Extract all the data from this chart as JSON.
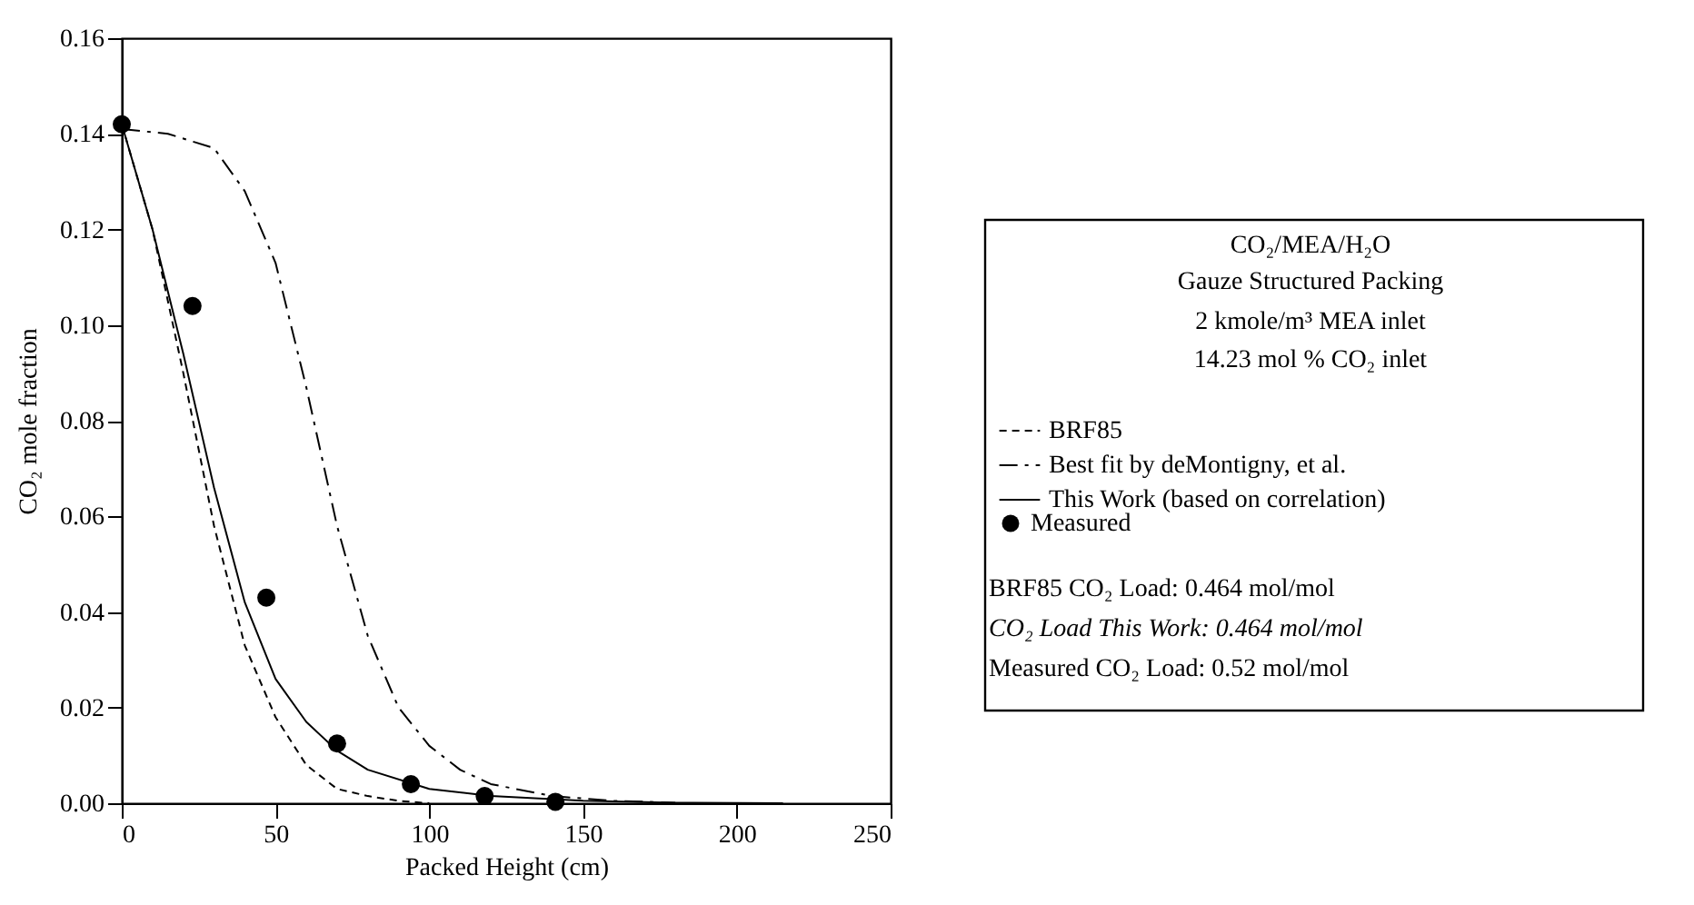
{
  "chart_data": {
    "type": "line",
    "xlabel": "Packed Height (cm)",
    "ylabel": "CO₂ mole fraction",
    "xlim": [
      0,
      250
    ],
    "xticks": [
      0,
      50,
      100,
      150,
      200,
      250
    ],
    "ylim": [
      0,
      0.16
    ],
    "yticks": [
      {
        "value": 0,
        "label": "0.00"
      },
      0.02,
      0.04,
      0.06,
      0.08,
      {
        "value": 0.1,
        "label": "0.10"
      },
      0.12,
      0.14,
      0.16
    ],
    "grid": false,
    "legend": "right",
    "series": [
      {
        "name": "BRF85",
        "line_style": "dashed",
        "color": "#000000",
        "x": [
          0,
          10,
          20,
          30,
          40,
          50,
          60,
          70,
          80,
          90,
          100
        ],
        "values": [
          0.142,
          0.12,
          0.09,
          0.058,
          0.033,
          0.018,
          0.008,
          0.003,
          0.0015,
          0.0005,
          0
        ]
      },
      {
        "name": "Best fit by deMontigny, et al.",
        "line_style": "dashdot",
        "color": "#000000",
        "x": [
          0,
          15,
          30,
          40,
          50,
          60,
          70,
          80,
          90,
          100,
          110,
          120,
          140,
          160,
          180
        ],
        "values": [
          0.141,
          0.14,
          0.137,
          0.128,
          0.113,
          0.087,
          0.058,
          0.035,
          0.02,
          0.012,
          0.007,
          0.004,
          0.0015,
          0.0005,
          0.0001
        ]
      },
      {
        "name": "This Work (based on correlation)",
        "line_style": "solid",
        "color": "#000000",
        "x": [
          0,
          10,
          20,
          30,
          40,
          50,
          60,
          70,
          80,
          100,
          120,
          150,
          180,
          215
        ],
        "values": [
          0.142,
          0.12,
          0.094,
          0.066,
          0.042,
          0.026,
          0.017,
          0.011,
          0.007,
          0.003,
          0.0015,
          0.0005,
          0.0001,
          0
        ]
      },
      {
        "name": "Measured",
        "type": "scatter",
        "marker": "circle",
        "color": "#000000",
        "x": [
          0,
          23,
          47,
          70,
          94,
          118,
          141
        ],
        "values": [
          0.142,
          0.104,
          0.043,
          0.0125,
          0.004,
          0.0015,
          0.0003
        ]
      }
    ],
    "annotations": [
      "CO₂/MEA/H₂O",
      "Gauze Structured Packing",
      "2 kmole/m³ MEA inlet",
      "14.23 mol % CO₂ inlet",
      "BRF85 CO₂ Load: 0.464 mol/mol",
      "CO₂ Load This Work: 0.464 mol/mol",
      "Measured CO₂ Load: 0.52 mol/mol"
    ]
  }
}
